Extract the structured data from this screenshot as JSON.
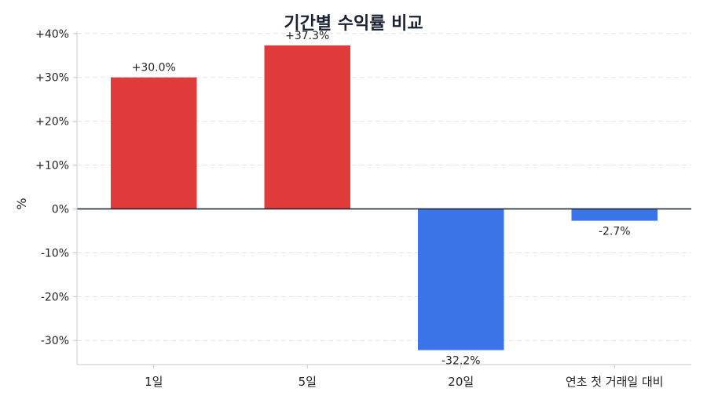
{
  "chart_data": {
    "type": "bar",
    "title": "기간별 수익률 비교",
    "xlabel": "",
    "ylabel": "%",
    "categories": [
      "1일",
      "5일",
      "20일",
      "연초 첫 거래일 대비"
    ],
    "values": [
      30.0,
      37.3,
      -32.2,
      -2.7
    ],
    "data_labels": [
      "+30.0%",
      "+37.3%",
      "-32.2%",
      "-2.7%"
    ],
    "ylim": [
      -35.5,
      40.5
    ],
    "yticks": [
      -30,
      -20,
      -10,
      0,
      10,
      20,
      30,
      40
    ],
    "ytick_labels": [
      "-30%",
      "-20%",
      "-10%",
      "0%",
      "+10%",
      "+20%",
      "+30%",
      "+40%"
    ],
    "grid": true,
    "colors": {
      "positive": "#e03a3a",
      "negative": "#3b73e8",
      "zero_line": "#1e2b3c",
      "grid": "#e3e3e3",
      "axis": "#c8c8c8",
      "text": "#222222"
    }
  }
}
